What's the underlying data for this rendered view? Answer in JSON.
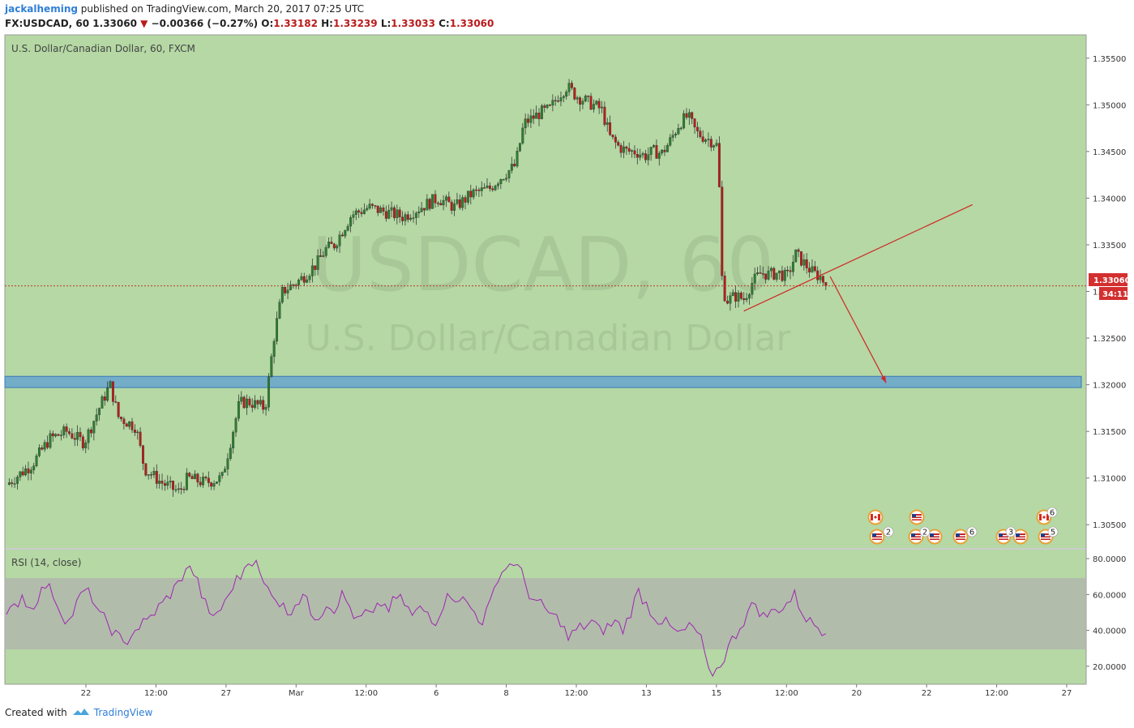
{
  "header": {
    "author": "jackalheming",
    "published_text": "published on TradingView.com, March 20, 2017 07:25 UTC",
    "symbol": "FX:USDCAD, 60",
    "last": "1.33060",
    "change_arrow": "▼",
    "change": "−0.00366 (−0.27%)",
    "o_label": "O:",
    "o": "1.33182",
    "h_label": "H:",
    "h": "1.33239",
    "l_label": "L:",
    "l": "1.33033",
    "c_label": "C:",
    "c": "1.33060"
  },
  "main_pane": {
    "legend": "U.S. Dollar/Canadian Dollar, 60, FXCM",
    "watermark_line1": "USDCAD, 60",
    "watermark_line2": "U.S. Dollar/Canadian Dollar",
    "price_tag": "1.33060",
    "countdown_tag": "34:11",
    "background_color": "#b5d8a4"
  },
  "rsi_pane": {
    "legend": "RSI (14, close)"
  },
  "chart_data": [
    {
      "type": "candlestick",
      "title": "U.S. Dollar/Canadian Dollar, 60, FXCM",
      "x_ticks": [
        "22",
        "12:00",
        "27",
        "Mar",
        "12:00",
        "6",
        "8",
        "12:00",
        "13",
        "15",
        "12:00",
        "20",
        "22",
        "12:00",
        "27"
      ],
      "y_ticks": [
        "1.35500",
        "1.35000",
        "1.34500",
        "1.34000",
        "1.33500",
        "1.33000",
        "1.32500",
        "1.32000",
        "1.31500",
        "1.31000",
        "1.30500"
      ],
      "ylim": [
        1.3025,
        1.3575
      ],
      "last_price": 1.3306,
      "close_path": [
        [
          0,
          1.3093
        ],
        [
          0.03,
          1.3115
        ],
        [
          0.05,
          1.3142
        ],
        [
          0.07,
          1.315
        ],
        [
          0.09,
          1.3138
        ],
        [
          0.11,
          1.318
        ],
        [
          0.12,
          1.32
        ],
        [
          0.13,
          1.3165
        ],
        [
          0.15,
          1.3155
        ],
        [
          0.16,
          1.311
        ],
        [
          0.18,
          1.3095
        ],
        [
          0.2,
          1.3085
        ],
        [
          0.21,
          1.31
        ],
        [
          0.23,
          1.3095
        ],
        [
          0.25,
          1.31
        ],
        [
          0.26,
          1.314
        ],
        [
          0.27,
          1.318
        ],
        [
          0.28,
          1.3182
        ],
        [
          0.3,
          1.3175
        ],
        [
          0.31,
          1.325
        ],
        [
          0.32,
          1.33
        ],
        [
          0.34,
          1.3312
        ],
        [
          0.36,
          1.333
        ],
        [
          0.37,
          1.3345
        ],
        [
          0.38,
          1.335
        ],
        [
          0.4,
          1.3382
        ],
        [
          0.42,
          1.339
        ],
        [
          0.44,
          1.3385
        ],
        [
          0.46,
          1.338
        ],
        [
          0.48,
          1.339
        ],
        [
          0.5,
          1.34
        ],
        [
          0.52,
          1.339
        ],
        [
          0.54,
          1.3405
        ],
        [
          0.56,
          1.341
        ],
        [
          0.57,
          1.342
        ],
        [
          0.59,
          1.3435
        ],
        [
          0.6,
          1.348
        ],
        [
          0.62,
          1.3492
        ],
        [
          0.63,
          1.3495
        ],
        [
          0.64,
          1.351
        ],
        [
          0.65,
          1.352
        ],
        [
          0.66,
          1.351
        ],
        [
          0.67,
          1.3505
        ],
        [
          0.68,
          1.35
        ],
        [
          0.69,
          1.3495
        ],
        [
          0.7,
          1.3465
        ],
        [
          0.71,
          1.3455
        ],
        [
          0.72,
          1.345
        ],
        [
          0.73,
          1.345
        ],
        [
          0.74,
          1.3445
        ],
        [
          0.75,
          1.345
        ],
        [
          0.76,
          1.3448
        ],
        [
          0.77,
          1.3462
        ],
        [
          0.78,
          1.348
        ],
        [
          0.79,
          1.3488
        ],
        [
          0.8,
          1.347
        ],
        [
          0.81,
          1.3465
        ],
        [
          0.82,
          1.346
        ],
        [
          0.825,
          1.3455
        ],
        [
          0.83,
          1.3305
        ],
        [
          0.835,
          1.329
        ],
        [
          0.845,
          1.3295
        ],
        [
          0.855,
          1.3292
        ],
        [
          0.865,
          1.331
        ],
        [
          0.875,
          1.332
        ],
        [
          0.885,
          1.3318
        ],
        [
          0.895,
          1.332
        ],
        [
          0.905,
          1.3315
        ],
        [
          0.915,
          1.334
        ],
        [
          0.925,
          1.333
        ],
        [
          0.935,
          1.332
        ],
        [
          0.945,
          1.3315
        ],
        [
          0.95,
          1.3306
        ]
      ],
      "annotations": [
        {
          "type": "support-zone",
          "y_range": [
            1.3197,
            1.3209
          ]
        },
        {
          "type": "trendline",
          "from": [
            0.855,
            1.3279
          ],
          "to": [
            1.12,
            1.3393
          ]
        },
        {
          "type": "arrow",
          "from": [
            0.955,
            1.3316
          ],
          "to": [
            1.02,
            1.3202
          ]
        }
      ]
    },
    {
      "type": "line",
      "title": "RSI (14, close)",
      "y_ticks": [
        "80.0000",
        "60.0000",
        "40.0000",
        "20.0000"
      ],
      "ylim": [
        10,
        85
      ],
      "band": [
        30,
        70
      ],
      "series": [
        {
          "values": [
            47,
            53,
            60,
            52,
            58,
            65,
            60,
            50,
            45,
            55,
            62,
            58,
            48,
            44,
            38,
            32,
            38,
            42,
            45,
            50,
            55,
            60,
            66,
            75,
            72,
            60,
            48,
            50,
            55,
            65,
            70,
            80,
            77,
            65,
            62,
            55,
            50,
            55,
            60,
            50,
            48,
            55,
            52,
            60,
            53,
            45,
            50,
            48,
            55,
            52,
            58,
            55,
            48,
            52,
            50,
            45,
            55,
            60,
            58,
            55,
            50,
            45,
            55,
            70,
            75,
            78,
            72,
            60,
            55,
            52,
            48,
            45,
            35,
            40,
            42,
            45,
            40,
            42,
            45,
            40,
            50,
            62,
            55,
            48,
            45,
            42,
            38,
            40,
            42,
            35,
            16,
            18,
            25,
            35,
            42,
            50,
            55,
            48,
            50,
            52,
            55,
            60,
            50,
            45,
            42,
            40
          ]
        }
      ]
    }
  ]
}
